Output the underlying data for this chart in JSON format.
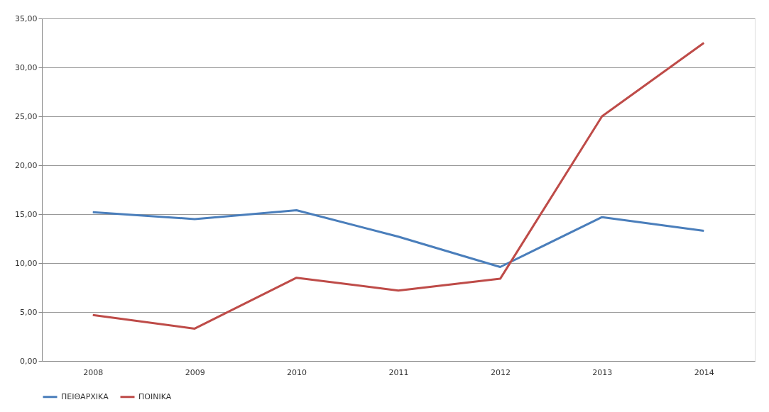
{
  "chart_data": {
    "type": "line",
    "categories": [
      "2008",
      "2009",
      "2010",
      "2011",
      "2012",
      "2013",
      "2014"
    ],
    "series": [
      {
        "name": "ΠΕΙΘΑΡΧΙΚΑ",
        "color": "#4a7ebb",
        "values": [
          15.2,
          14.5,
          15.4,
          12.7,
          9.6,
          14.7,
          13.3
        ]
      },
      {
        "name": "ΠΟΙΝΙΚΑ",
        "color": "#be4b48",
        "values": [
          4.7,
          3.3,
          8.5,
          7.2,
          8.4,
          25.0,
          32.5
        ]
      }
    ],
    "ylim": [
      0,
      35
    ],
    "yticks": [
      {
        "value": 0,
        "label": "0,00"
      },
      {
        "value": 5,
        "label": "5,00"
      },
      {
        "value": 10,
        "label": "10,00"
      },
      {
        "value": 15,
        "label": "15,00"
      },
      {
        "value": 20,
        "label": "20,00"
      },
      {
        "value": 25,
        "label": "25,00"
      },
      {
        "value": 30,
        "label": "30,00"
      },
      {
        "value": 35,
        "label": "35,00"
      }
    ],
    "grid": "y",
    "legend": "bottom",
    "marker": "none",
    "line_style": "solid"
  }
}
